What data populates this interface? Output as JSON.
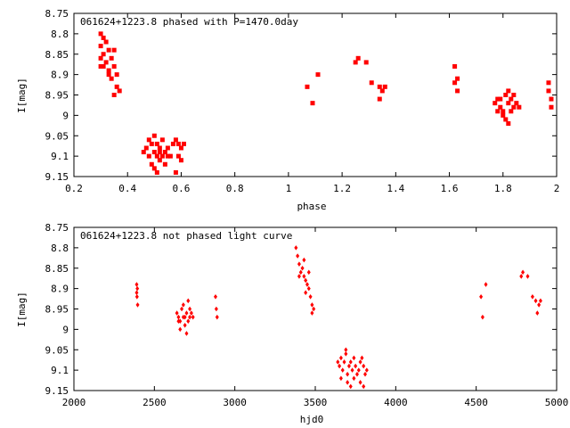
{
  "chart_data": [
    {
      "type": "scatter",
      "title": "061624+1223.8 phased with P=1470.0day",
      "xlabel": "phase",
      "ylabel": "I[mag]",
      "xlim": [
        0.2,
        2.0
      ],
      "ylim": [
        8.75,
        9.15
      ],
      "y_inverted": true,
      "grid": false,
      "legend": "none",
      "marker": "filled-square",
      "color": "#ff0000",
      "xticks": [
        "0.2",
        "0.4",
        "0.6",
        "0.8",
        "1",
        "1.2",
        "1.4",
        "1.6",
        "1.8",
        "2"
      ],
      "yticks": [
        "8.75",
        "8.8",
        "8.85",
        "8.9",
        "8.95",
        "9",
        "9.05",
        "9.1",
        "9.15"
      ],
      "points": [
        [
          0.3,
          8.8
        ],
        [
          0.31,
          8.81
        ],
        [
          0.32,
          8.82
        ],
        [
          0.3,
          8.83
        ],
        [
          0.33,
          8.84
        ],
        [
          0.31,
          8.85
        ],
        [
          0.35,
          8.84
        ],
        [
          0.3,
          8.86
        ],
        [
          0.32,
          8.87
        ],
        [
          0.34,
          8.86
        ],
        [
          0.3,
          8.88
        ],
        [
          0.33,
          8.89
        ],
        [
          0.35,
          8.88
        ],
        [
          0.36,
          8.9
        ],
        [
          0.34,
          8.91
        ],
        [
          0.36,
          8.93
        ],
        [
          0.37,
          8.94
        ],
        [
          0.35,
          8.95
        ],
        [
          0.31,
          8.88
        ],
        [
          0.33,
          8.9
        ],
        [
          0.48,
          9.06
        ],
        [
          0.49,
          9.07
        ],
        [
          0.5,
          9.05
        ],
        [
          0.51,
          9.07
        ],
        [
          0.52,
          9.08
        ],
        [
          0.53,
          9.06
        ],
        [
          0.5,
          9.09
        ],
        [
          0.51,
          9.1
        ],
        [
          0.52,
          9.11
        ],
        [
          0.49,
          9.12
        ],
        [
          0.53,
          9.1
        ],
        [
          0.54,
          9.09
        ],
        [
          0.55,
          9.08
        ],
        [
          0.47,
          9.08
        ],
        [
          0.46,
          9.09
        ],
        [
          0.48,
          9.1
        ],
        [
          0.5,
          9.13
        ],
        [
          0.51,
          9.14
        ],
        [
          0.54,
          9.12
        ],
        [
          0.56,
          9.1
        ],
        [
          0.57,
          9.07
        ],
        [
          0.58,
          9.06
        ],
        [
          0.59,
          9.07
        ],
        [
          0.6,
          9.08
        ],
        [
          0.61,
          9.07
        ],
        [
          0.59,
          9.1
        ],
        [
          0.6,
          9.11
        ],
        [
          0.58,
          9.14
        ],
        [
          0.52,
          9.09
        ],
        [
          0.55,
          9.1
        ],
        [
          1.07,
          8.93
        ],
        [
          1.09,
          8.97
        ],
        [
          1.11,
          8.9
        ],
        [
          1.25,
          8.87
        ],
        [
          1.26,
          8.86
        ],
        [
          1.29,
          8.87
        ],
        [
          1.31,
          8.92
        ],
        [
          1.34,
          8.93
        ],
        [
          1.35,
          8.94
        ],
        [
          1.36,
          8.93
        ],
        [
          1.34,
          8.96
        ],
        [
          1.62,
          8.88
        ],
        [
          1.62,
          8.92
        ],
        [
          1.63,
          8.91
        ],
        [
          1.63,
          8.94
        ],
        [
          1.77,
          8.97
        ],
        [
          1.78,
          8.96
        ],
        [
          1.79,
          8.98
        ],
        [
          1.8,
          8.99
        ],
        [
          1.81,
          8.95
        ],
        [
          1.82,
          8.97
        ],
        [
          1.83,
          8.96
        ],
        [
          1.84,
          8.98
        ],
        [
          1.85,
          8.97
        ],
        [
          1.8,
          9.0
        ],
        [
          1.81,
          9.01
        ],
        [
          1.82,
          8.94
        ],
        [
          1.83,
          8.99
        ],
        [
          1.79,
          8.96
        ],
        [
          1.86,
          8.98
        ],
        [
          1.78,
          8.99
        ],
        [
          1.82,
          9.02
        ],
        [
          1.84,
          8.95
        ],
        [
          1.97,
          8.92
        ],
        [
          1.97,
          8.94
        ],
        [
          1.98,
          8.96
        ],
        [
          1.98,
          8.98
        ]
      ]
    },
    {
      "type": "scatter",
      "title": "061624+1223.8 not phased light curve",
      "xlabel": "hjd0",
      "ylabel": "I[mag]",
      "xlim": [
        2000,
        5000
      ],
      "ylim": [
        8.75,
        9.15
      ],
      "y_inverted": true,
      "grid": false,
      "legend": "none",
      "marker": "filled-diamond",
      "color": "#ff0000",
      "xticks": [
        "2000",
        "2500",
        "3000",
        "3500",
        "4000",
        "4500",
        "5000"
      ],
      "yticks": [
        "8.75",
        "8.8",
        "8.85",
        "8.9",
        "8.95",
        "9",
        "9.05",
        "9.1",
        "9.15"
      ],
      "points": [
        [
          2390,
          8.89
        ],
        [
          2390,
          8.91
        ],
        [
          2392,
          8.92
        ],
        [
          2394,
          8.9
        ],
        [
          2396,
          8.94
        ],
        [
          2640,
          8.96
        ],
        [
          2650,
          8.97
        ],
        [
          2660,
          8.98
        ],
        [
          2670,
          8.95
        ],
        [
          2680,
          8.97
        ],
        [
          2690,
          8.99
        ],
        [
          2700,
          8.96
        ],
        [
          2710,
          8.98
        ],
        [
          2720,
          8.97
        ],
        [
          2730,
          8.96
        ],
        [
          2740,
          8.97
        ],
        [
          2660,
          9.0
        ],
        [
          2700,
          9.01
        ],
        [
          2680,
          8.94
        ],
        [
          2720,
          8.95
        ],
        [
          2650,
          8.98
        ],
        [
          2710,
          8.93
        ],
        [
          2690,
          8.97
        ],
        [
          2880,
          8.92
        ],
        [
          2885,
          8.95
        ],
        [
          2890,
          8.97
        ],
        [
          3380,
          8.8
        ],
        [
          3390,
          8.82
        ],
        [
          3400,
          8.84
        ],
        [
          3410,
          8.86
        ],
        [
          3420,
          8.85
        ],
        [
          3430,
          8.87
        ],
        [
          3440,
          8.88
        ],
        [
          3450,
          8.89
        ],
        [
          3440,
          8.91
        ],
        [
          3460,
          8.9
        ],
        [
          3470,
          8.92
        ],
        [
          3480,
          8.94
        ],
        [
          3490,
          8.95
        ],
        [
          3400,
          8.87
        ],
        [
          3430,
          8.83
        ],
        [
          3460,
          8.86
        ],
        [
          3480,
          8.96
        ],
        [
          3640,
          9.08
        ],
        [
          3650,
          9.09
        ],
        [
          3660,
          9.07
        ],
        [
          3670,
          9.1
        ],
        [
          3680,
          9.08
        ],
        [
          3690,
          9.06
        ],
        [
          3700,
          9.11
        ],
        [
          3710,
          9.09
        ],
        [
          3720,
          9.08
        ],
        [
          3730,
          9.1
        ],
        [
          3740,
          9.12
        ],
        [
          3750,
          9.09
        ],
        [
          3760,
          9.11
        ],
        [
          3770,
          9.1
        ],
        [
          3780,
          9.08
        ],
        [
          3790,
          9.07
        ],
        [
          3800,
          9.09
        ],
        [
          3810,
          9.11
        ],
        [
          3820,
          9.1
        ],
        [
          3700,
          9.13
        ],
        [
          3720,
          9.14
        ],
        [
          3690,
          9.05
        ],
        [
          3660,
          9.12
        ],
        [
          3740,
          9.07
        ],
        [
          3780,
          9.13
        ],
        [
          3800,
          9.14
        ],
        [
          4530,
          8.92
        ],
        [
          4540,
          8.97
        ],
        [
          4560,
          8.89
        ],
        [
          4780,
          8.87
        ],
        [
          4790,
          8.86
        ],
        [
          4820,
          8.87
        ],
        [
          4850,
          8.92
        ],
        [
          4870,
          8.93
        ],
        [
          4890,
          8.94
        ],
        [
          4900,
          8.93
        ],
        [
          4880,
          8.96
        ]
      ]
    }
  ]
}
